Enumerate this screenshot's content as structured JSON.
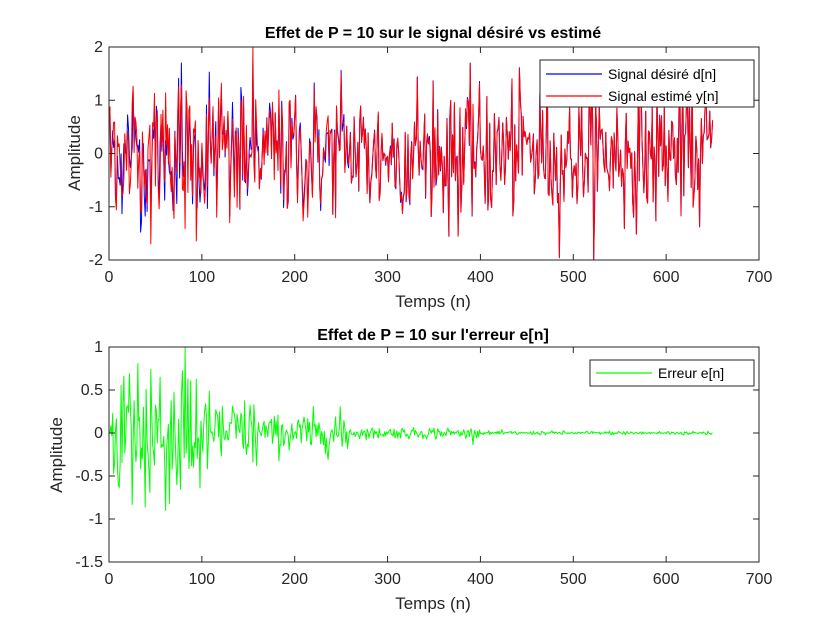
{
  "chart_data": [
    {
      "type": "line",
      "title": "Effet de P = 10 sur le signal désiré vs estimé",
      "xlabel": "Temps (n)",
      "ylabel": "Amplitude",
      "xlim": [
        0,
        700
      ],
      "ylim": [
        -2,
        2
      ],
      "xticks": [
        "0",
        "100",
        "200",
        "300",
        "400",
        "500",
        "600",
        "700"
      ],
      "yticks": [
        "-2",
        "-1",
        "0",
        "1",
        "2"
      ],
      "legend_position": "top-right",
      "grid": false,
      "series": [
        {
          "name": "Signal désiré d[n]",
          "color": "#0000ff",
          "n_points": 650
        },
        {
          "name": "Signal estimé y[n]",
          "color": "#ff0000",
          "n_points": 650
        }
      ]
    },
    {
      "type": "line",
      "title": "Effet de P = 10 sur l'erreur e[n]",
      "xlabel": "Temps (n)",
      "ylabel": "Amplitude",
      "xlim": [
        0,
        700
      ],
      "ylim": [
        -1.5,
        1
      ],
      "xticks": [
        "0",
        "100",
        "200",
        "300",
        "400",
        "500",
        "600",
        "700"
      ],
      "yticks": [
        "-1.5",
        "-1",
        "-0.5",
        "0",
        "0.5",
        "1"
      ],
      "legend_position": "top-right",
      "grid": false,
      "series": [
        {
          "name": "Erreur e[n]",
          "color": "#00ff00",
          "n_points": 650
        }
      ]
    }
  ]
}
